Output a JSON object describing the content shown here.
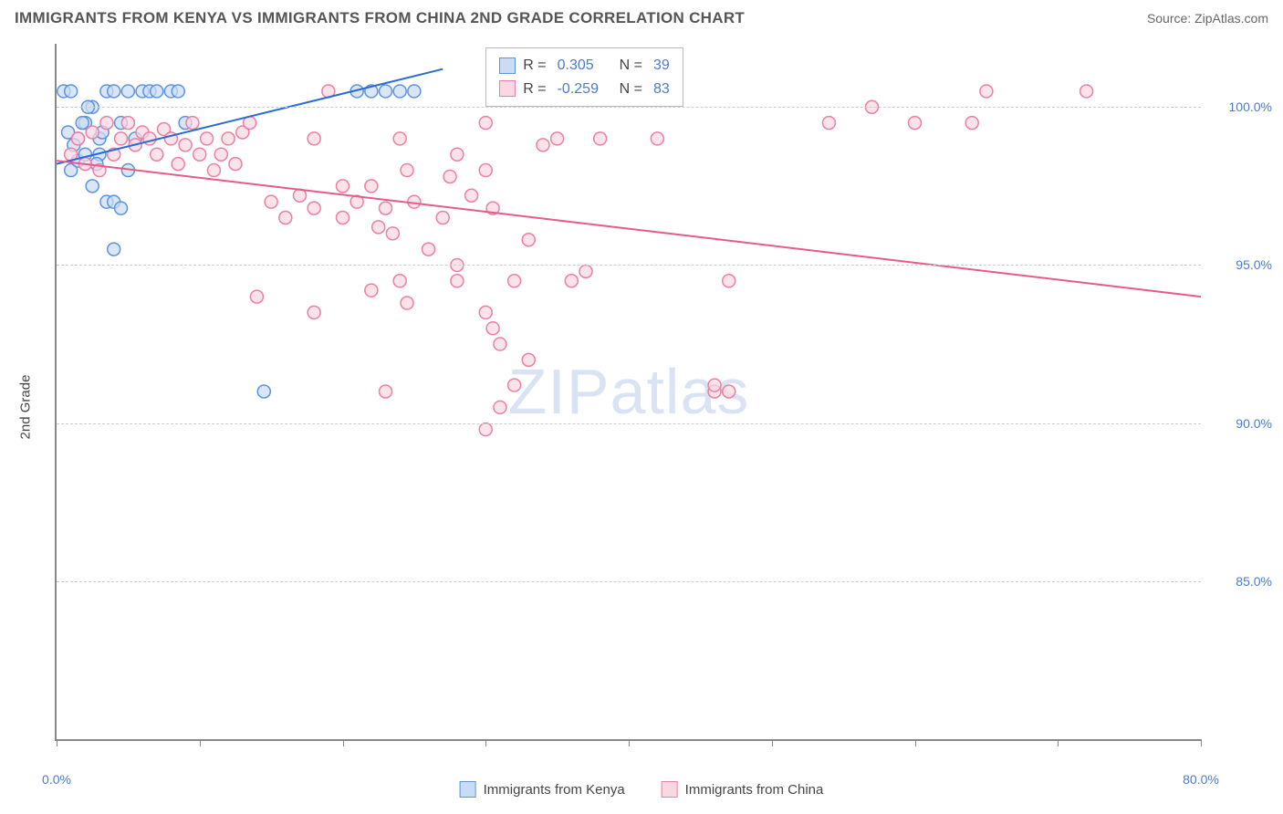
{
  "title": "IMMIGRANTS FROM KENYA VS IMMIGRANTS FROM CHINA 2ND GRADE CORRELATION CHART",
  "source_label": "Source: ZipAtlas.com",
  "ylabel": "2nd Grade",
  "watermark": "ZIPatlas",
  "chart": {
    "type": "scatter-with-regression",
    "background_color": "#ffffff",
    "grid_color": "#cccccc",
    "axis_color": "#888888",
    "label_color": "#4a7bd0",
    "xlim": [
      0,
      80
    ],
    "ylim": [
      80,
      102
    ],
    "yticks": [
      85.0,
      90.0,
      95.0,
      100.0
    ],
    "ytick_labels": [
      "85.0%",
      "90.0%",
      "95.0%",
      "100.0%"
    ],
    "xticks": [
      0,
      10,
      20,
      30,
      40,
      50,
      60,
      70,
      80
    ],
    "x_start_label": "0.0%",
    "x_end_label": "80.0%",
    "marker_radius": 7,
    "marker_stroke_width": 1.5,
    "line_width": 2,
    "series": [
      {
        "name": "Immigrants from Kenya",
        "color_fill": "#cadcf5",
        "color_stroke": "#5c93df",
        "line_color": "#2b6bd4",
        "R": "0.305",
        "N": "39",
        "regression": {
          "x1": 0,
          "y1": 98.2,
          "x2": 27,
          "y2": 101.2
        },
        "points": [
          [
            0.5,
            100.5
          ],
          [
            1,
            100.5
          ],
          [
            1.5,
            99
          ],
          [
            2,
            99.5
          ],
          [
            2.5,
            100
          ],
          [
            3,
            99
          ],
          [
            3.5,
            100.5
          ],
          [
            4,
            100.5
          ],
          [
            4.5,
            99.5
          ],
          [
            5,
            100.5
          ],
          [
            5.5,
            99
          ],
          [
            6,
            100.5
          ],
          [
            6.5,
            100.5
          ],
          [
            7,
            100.5
          ],
          [
            8,
            100.5
          ],
          [
            8.5,
            100.5
          ],
          [
            9,
            99.5
          ],
          [
            1,
            98
          ],
          [
            1.5,
            98.3
          ],
          [
            2,
            98.5
          ],
          [
            2.5,
            97.5
          ],
          [
            3,
            98.5
          ],
          [
            3.5,
            97
          ],
          [
            4,
            97
          ],
          [
            4.5,
            96.8
          ],
          [
            5,
            98
          ],
          [
            0.8,
            99.2
          ],
          [
            1.2,
            98.8
          ],
          [
            1.8,
            99.5
          ],
          [
            2.2,
            100
          ],
          [
            2.8,
            98.2
          ],
          [
            3.2,
            99.2
          ],
          [
            21,
            100.5
          ],
          [
            22,
            100.5
          ],
          [
            23,
            100.5
          ],
          [
            24,
            100.5
          ],
          [
            25,
            100.5
          ],
          [
            4,
            95.5
          ],
          [
            14.5,
            91
          ]
        ]
      },
      {
        "name": "Immigrants from China",
        "color_fill": "#fbd7e1",
        "color_stroke": "#ec7fa3",
        "line_color": "#e85a8c",
        "R": "-0.259",
        "N": "83",
        "regression": {
          "x1": 0,
          "y1": 98.3,
          "x2": 80,
          "y2": 94
        },
        "points": [
          [
            1,
            98.5
          ],
          [
            1.5,
            99
          ],
          [
            2,
            98.2
          ],
          [
            2.5,
            99.2
          ],
          [
            3,
            98
          ],
          [
            3.5,
            99.5
          ],
          [
            4,
            98.5
          ],
          [
            4.5,
            99
          ],
          [
            5,
            99.5
          ],
          [
            5.5,
            98.8
          ],
          [
            6,
            99.2
          ],
          [
            6.5,
            99
          ],
          [
            7,
            98.5
          ],
          [
            7.5,
            99.3
          ],
          [
            8,
            99
          ],
          [
            8.5,
            98.2
          ],
          [
            9,
            98.8
          ],
          [
            9.5,
            99.5
          ],
          [
            10,
            98.5
          ],
          [
            10.5,
            99
          ],
          [
            11,
            98
          ],
          [
            11.5,
            98.5
          ],
          [
            12,
            99
          ],
          [
            12.5,
            98.2
          ],
          [
            13,
            99.2
          ],
          [
            13.5,
            99.5
          ],
          [
            18,
            99
          ],
          [
            19,
            100.5
          ],
          [
            20,
            97.5
          ],
          [
            15,
            97
          ],
          [
            16,
            96.5
          ],
          [
            17,
            97.2
          ],
          [
            18,
            96.8
          ],
          [
            20,
            96.5
          ],
          [
            21,
            97
          ],
          [
            22,
            97.5
          ],
          [
            22.5,
            96.2
          ],
          [
            23,
            96.8
          ],
          [
            23.5,
            96
          ],
          [
            24,
            99
          ],
          [
            24.5,
            98
          ],
          [
            25,
            97
          ],
          [
            26,
            95.5
          ],
          [
            27,
            96.5
          ],
          [
            27.5,
            97.8
          ],
          [
            28,
            98.5
          ],
          [
            29,
            97.2
          ],
          [
            30,
            98
          ],
          [
            30.5,
            96.8
          ],
          [
            28,
            95
          ],
          [
            14,
            94
          ],
          [
            18,
            93.5
          ],
          [
            22,
            94.2
          ],
          [
            24,
            94.5
          ],
          [
            24.5,
            93.8
          ],
          [
            28,
            94.5
          ],
          [
            30,
            93.5
          ],
          [
            30.5,
            93
          ],
          [
            31,
            92.5
          ],
          [
            32,
            94.5
          ],
          [
            33,
            95.8
          ],
          [
            34,
            98.8
          ],
          [
            35,
            99
          ],
          [
            36,
            94.5
          ],
          [
            37,
            94.8
          ],
          [
            38,
            99
          ],
          [
            23,
            91
          ],
          [
            31,
            90.5
          ],
          [
            30,
            89.8
          ],
          [
            32,
            91.2
          ],
          [
            33,
            92
          ],
          [
            46,
            91
          ],
          [
            47,
            91
          ],
          [
            65,
            100.5
          ],
          [
            72,
            100.5
          ],
          [
            54,
            99.5
          ],
          [
            57,
            100
          ],
          [
            60,
            99.5
          ],
          [
            64,
            99.5
          ],
          [
            42,
            99
          ],
          [
            47,
            94.5
          ],
          [
            46,
            91.2
          ],
          [
            30,
            99.5
          ]
        ]
      }
    ]
  },
  "legend": {
    "r_prefix": "R =",
    "n_prefix": "N ="
  }
}
